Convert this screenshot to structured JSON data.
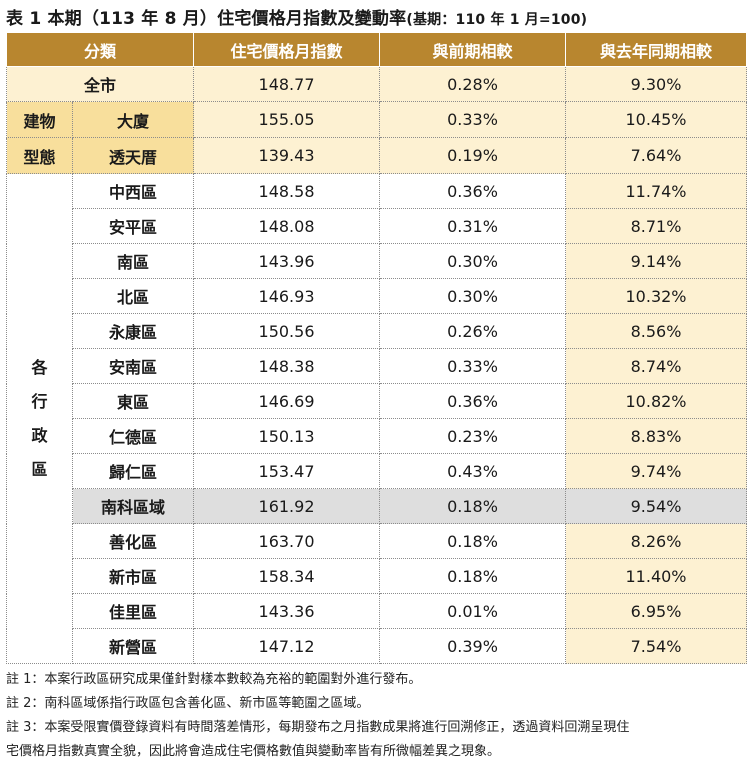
{
  "title": "表 1 本期（113 年 8 月）住宅價格月指數及變動率",
  "title_base": "(基期：110 年 1 月=100)",
  "headers": [
    "分類",
    "住宅價格月指數",
    "與前期相較",
    "與去年同期相較"
  ],
  "all_market": {
    "label": "全市",
    "index": "148.77",
    "mom": "0.28%",
    "yoy": "9.30%"
  },
  "building_type": {
    "group_label": [
      "建物",
      "型態"
    ],
    "rows": [
      {
        "label": "大廈",
        "index": "155.05",
        "mom": "0.33%",
        "yoy": "10.45%"
      },
      {
        "label": "透天厝",
        "index": "139.43",
        "mom": "0.19%",
        "yoy": "7.64%"
      }
    ]
  },
  "districts": {
    "group_label": [
      "各",
      "行",
      "政",
      "區"
    ],
    "rows": [
      {
        "label": "中西區",
        "index": "148.58",
        "mom": "0.36%",
        "yoy": "11.74%"
      },
      {
        "label": "安平區",
        "index": "148.08",
        "mom": "0.31%",
        "yoy": "8.71%"
      },
      {
        "label": "南區",
        "index": "143.96",
        "mom": "0.30%",
        "yoy": "9.14%"
      },
      {
        "label": "北區",
        "index": "146.93",
        "mom": "0.30%",
        "yoy": "10.32%"
      },
      {
        "label": "永康區",
        "index": "150.56",
        "mom": "0.26%",
        "yoy": "8.56%"
      },
      {
        "label": "安南區",
        "index": "148.38",
        "mom": "0.33%",
        "yoy": "8.74%"
      },
      {
        "label": "東區",
        "index": "146.69",
        "mom": "0.36%",
        "yoy": "10.82%"
      },
      {
        "label": "仁德區",
        "index": "150.13",
        "mom": "0.23%",
        "yoy": "8.83%"
      },
      {
        "label": "歸仁區",
        "index": "153.47",
        "mom": "0.43%",
        "yoy": "9.74%"
      },
      {
        "label": "南科區域",
        "index": "161.92",
        "mom": "0.18%",
        "yoy": "9.54%"
      },
      {
        "label": "善化區",
        "index": "163.70",
        "mom": "0.18%",
        "yoy": "8.26%"
      },
      {
        "label": "新市區",
        "index": "158.34",
        "mom": "0.18%",
        "yoy": "11.40%"
      },
      {
        "label": "佳里區",
        "index": "143.36",
        "mom": "0.01%",
        "yoy": "6.95%"
      },
      {
        "label": "新營區",
        "index": "147.12",
        "mom": "0.39%",
        "yoy": "7.54%"
      }
    ]
  },
  "notes": [
    "註 1：本案行政區研究成果僅針對樣本數較為充裕的範圍對外進行發布。",
    "註 2：南科區域係指行政區包含善化區、新市區等範圍之區域。",
    "註 3：本案受限實價登錄資料有時間落差情形，每期發布之月指數成果將進行回溯修正，透過資料回溯呈現住",
    "宅價格月指數真實全貌，因此將會造成住宅價格數值與變動率皆有所微幅差異之現象。"
  ]
}
